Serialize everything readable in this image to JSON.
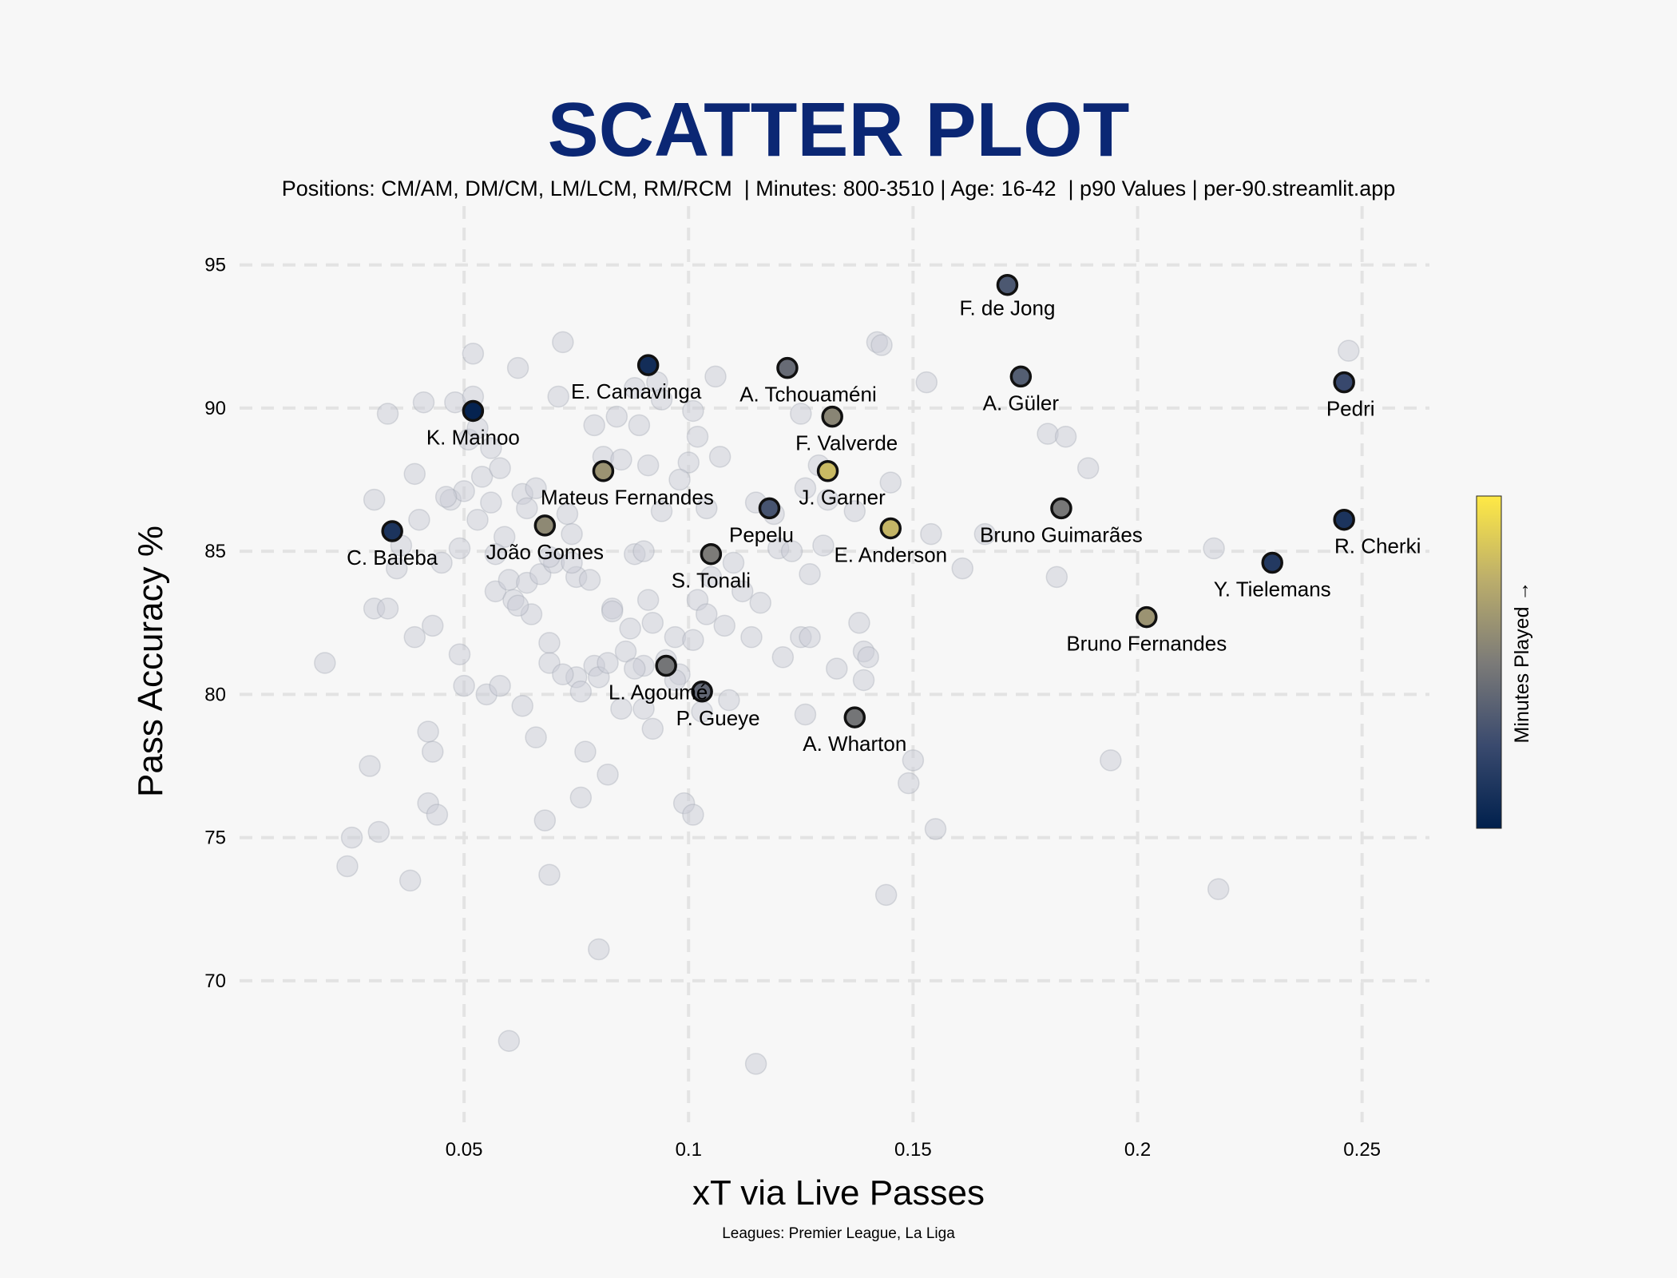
{
  "title": "SCATTER PLOT",
  "subtitle": "Positions: CM/AM, DM/CM, LM/LCM, RM/RCM  | Minutes: 800-3510 | Age: 16-42  | p90 Values | per-90.streamlit.app",
  "footnote": "Leagues: Premier League, La Liga",
  "colors": {
    "background": "#f7f7f7",
    "title": "#0b2774",
    "grid": "#e3e3e3",
    "background_points": "#c9ccd6",
    "cmap_low": "#00204d",
    "cmap_mid": "#7c7b78",
    "cmap_high": "#ffe945"
  },
  "chart_data": {
    "type": "scatter",
    "xlabel": "xT via Live Passes",
    "ylabel": "Pass Accuracy %",
    "xlim": [
      0.0,
      0.265
    ],
    "ylim": [
      65.2,
      96.3
    ],
    "xticks": [
      0.05,
      0.1,
      0.15,
      0.2,
      0.25
    ],
    "xtick_labels": [
      "0.05",
      "0.1",
      "0.15",
      "0.2",
      "0.25"
    ],
    "yticks": [
      70,
      75,
      80,
      85,
      90,
      95
    ],
    "ytick_labels": [
      "70",
      "75",
      "80",
      "85",
      "90",
      "95"
    ],
    "grid": true,
    "colorbar": {
      "label": "Minutes Played →",
      "placement": "right",
      "colormap": "cividis"
    },
    "highlighted": [
      {
        "name": "F. de Jong",
        "x": 0.171,
        "y": 94.3,
        "color": 0.32
      },
      {
        "name": "E. Camavinga",
        "x": 0.091,
        "y": 91.5,
        "color": 0.08
      },
      {
        "name": "A. Tchouaméni",
        "x": 0.122,
        "y": 91.4,
        "color": 0.42
      },
      {
        "name": "A. Güler",
        "x": 0.174,
        "y": 91.1,
        "color": 0.35
      },
      {
        "name": "Pedri",
        "x": 0.246,
        "y": 90.9,
        "color": 0.24
      },
      {
        "name": "K. Mainoo",
        "x": 0.052,
        "y": 89.9,
        "color": 0.02
      },
      {
        "name": "F. Valverde",
        "x": 0.132,
        "y": 89.7,
        "color": 0.55
      },
      {
        "name": "Mateus Fernandes",
        "x": 0.081,
        "y": 87.8,
        "color": 0.62
      },
      {
        "name": "J. Garner",
        "x": 0.131,
        "y": 87.8,
        "color": 0.8
      },
      {
        "name": "Pepelu",
        "x": 0.118,
        "y": 86.5,
        "color": 0.3
      },
      {
        "name": "Bruno Guimarães",
        "x": 0.183,
        "y": 86.5,
        "color": 0.48
      },
      {
        "name": "R. Cherki",
        "x": 0.246,
        "y": 86.1,
        "color": 0.12
      },
      {
        "name": "João Gomes",
        "x": 0.068,
        "y": 85.9,
        "color": 0.57
      },
      {
        "name": "E. Anderson",
        "x": 0.145,
        "y": 85.8,
        "color": 0.78
      },
      {
        "name": "C. Baleba",
        "x": 0.034,
        "y": 85.7,
        "color": 0.12
      },
      {
        "name": "S. Tonali",
        "x": 0.105,
        "y": 84.9,
        "color": 0.5
      },
      {
        "name": "Y. Tielemans",
        "x": 0.23,
        "y": 84.6,
        "color": 0.15
      },
      {
        "name": "Bruno Fernandes",
        "x": 0.202,
        "y": 82.7,
        "color": 0.62
      },
      {
        "name": "L. Agoumé",
        "x": 0.095,
        "y": 81.0,
        "color": 0.47
      },
      {
        "name": "P. Gueye",
        "x": 0.103,
        "y": 80.1,
        "color": 0.4
      },
      {
        "name": "A. Wharton",
        "x": 0.137,
        "y": 79.2,
        "color": 0.47
      }
    ],
    "background_points": [
      [
        0.019,
        81.1
      ],
      [
        0.024,
        74.0
      ],
      [
        0.025,
        75.0
      ],
      [
        0.029,
        77.5
      ],
      [
        0.031,
        75.2
      ],
      [
        0.03,
        83.0
      ],
      [
        0.03,
        86.8
      ],
      [
        0.033,
        89.8
      ],
      [
        0.033,
        83.0
      ],
      [
        0.035,
        84.4
      ],
      [
        0.036,
        85.2
      ],
      [
        0.038,
        73.5
      ],
      [
        0.039,
        82.0
      ],
      [
        0.039,
        87.7
      ],
      [
        0.04,
        86.1
      ],
      [
        0.041,
        90.2
      ],
      [
        0.042,
        78.7
      ],
      [
        0.042,
        76.2
      ],
      [
        0.043,
        82.4
      ],
      [
        0.043,
        78.0
      ],
      [
        0.044,
        75.8
      ],
      [
        0.045,
        84.6
      ],
      [
        0.047,
        86.8
      ],
      [
        0.048,
        90.2
      ],
      [
        0.049,
        85.1
      ],
      [
        0.049,
        81.4
      ],
      [
        0.05,
        80.3
      ],
      [
        0.05,
        87.1
      ],
      [
        0.051,
        88.9
      ],
      [
        0.052,
        91.9
      ],
      [
        0.052,
        90.4
      ],
      [
        0.053,
        86.1
      ],
      [
        0.054,
        87.6
      ],
      [
        0.055,
        80.0
      ],
      [
        0.056,
        86.7
      ],
      [
        0.056,
        88.6
      ],
      [
        0.057,
        83.6
      ],
      [
        0.058,
        80.3
      ],
      [
        0.058,
        87.9
      ],
      [
        0.059,
        85.5
      ],
      [
        0.06,
        84.0
      ],
      [
        0.061,
        83.3
      ],
      [
        0.062,
        91.4
      ],
      [
        0.063,
        87.0
      ],
      [
        0.063,
        79.6
      ],
      [
        0.064,
        83.9
      ],
      [
        0.065,
        82.8
      ],
      [
        0.066,
        78.5
      ],
      [
        0.067,
        84.2
      ],
      [
        0.068,
        75.6
      ],
      [
        0.069,
        73.7
      ],
      [
        0.069,
        81.8
      ],
      [
        0.069,
        81.1
      ],
      [
        0.07,
        84.6
      ],
      [
        0.071,
        90.4
      ],
      [
        0.072,
        92.3
      ],
      [
        0.073,
        86.3
      ],
      [
        0.074,
        85.6
      ],
      [
        0.075,
        84.1
      ],
      [
        0.075,
        80.6
      ],
      [
        0.076,
        80.1
      ],
      [
        0.076,
        76.4
      ],
      [
        0.077,
        78.0
      ],
      [
        0.078,
        84.0
      ],
      [
        0.079,
        81.0
      ],
      [
        0.079,
        89.4
      ],
      [
        0.08,
        80.6
      ],
      [
        0.081,
        88.3
      ],
      [
        0.082,
        77.2
      ],
      [
        0.082,
        81.1
      ],
      [
        0.083,
        83.0
      ],
      [
        0.084,
        89.7
      ],
      [
        0.085,
        88.2
      ],
      [
        0.085,
        79.5
      ],
      [
        0.086,
        81.5
      ],
      [
        0.087,
        82.3
      ],
      [
        0.088,
        90.7
      ],
      [
        0.088,
        84.9
      ],
      [
        0.089,
        89.4
      ],
      [
        0.09,
        81.0
      ],
      [
        0.09,
        79.5
      ],
      [
        0.091,
        83.3
      ],
      [
        0.091,
        88.0
      ],
      [
        0.092,
        78.8
      ],
      [
        0.092,
        82.5
      ],
      [
        0.093,
        90.9
      ],
      [
        0.094,
        86.4
      ],
      [
        0.094,
        90.3
      ],
      [
        0.095,
        81.2
      ],
      [
        0.097,
        82.0
      ],
      [
        0.098,
        80.7
      ],
      [
        0.099,
        76.2
      ],
      [
        0.1,
        88.1
      ],
      [
        0.101,
        75.8
      ],
      [
        0.101,
        81.9
      ],
      [
        0.101,
        89.9
      ],
      [
        0.102,
        89.0
      ],
      [
        0.102,
        83.3
      ],
      [
        0.103,
        79.4
      ],
      [
        0.104,
        86.5
      ],
      [
        0.104,
        82.8
      ],
      [
        0.105,
        84.1
      ],
      [
        0.106,
        91.1
      ],
      [
        0.107,
        88.3
      ],
      [
        0.108,
        82.4
      ],
      [
        0.109,
        79.8
      ],
      [
        0.112,
        83.6
      ],
      [
        0.114,
        82.0
      ],
      [
        0.115,
        67.1
      ],
      [
        0.115,
        86.7
      ],
      [
        0.116,
        83.2
      ],
      [
        0.119,
        86.3
      ],
      [
        0.12,
        85.1
      ],
      [
        0.121,
        81.3
      ],
      [
        0.123,
        85.0
      ],
      [
        0.125,
        89.8
      ],
      [
        0.125,
        82.0
      ],
      [
        0.126,
        87.2
      ],
      [
        0.126,
        79.3
      ],
      [
        0.127,
        84.2
      ],
      [
        0.129,
        88.0
      ],
      [
        0.13,
        85.2
      ],
      [
        0.131,
        86.8
      ],
      [
        0.133,
        80.9
      ],
      [
        0.137,
        86.4
      ],
      [
        0.138,
        82.5
      ],
      [
        0.139,
        81.5
      ],
      [
        0.139,
        80.5
      ],
      [
        0.14,
        81.3
      ],
      [
        0.142,
        92.3
      ],
      [
        0.143,
        92.2
      ],
      [
        0.144,
        73.0
      ],
      [
        0.145,
        87.4
      ],
      [
        0.149,
        76.9
      ],
      [
        0.15,
        77.7
      ],
      [
        0.153,
        90.9
      ],
      [
        0.154,
        85.6
      ],
      [
        0.155,
        75.3
      ],
      [
        0.161,
        84.4
      ],
      [
        0.166,
        85.6
      ],
      [
        0.18,
        89.1
      ],
      [
        0.182,
        84.1
      ],
      [
        0.184,
        89.0
      ],
      [
        0.189,
        87.9
      ],
      [
        0.194,
        77.7
      ],
      [
        0.217,
        85.1
      ],
      [
        0.218,
        73.2
      ],
      [
        0.247,
        92.0
      ],
      [
        0.06,
        67.9
      ],
      [
        0.08,
        71.1
      ],
      [
        0.062,
        83.1
      ],
      [
        0.046,
        86.9
      ],
      [
        0.053,
        89.3
      ],
      [
        0.066,
        87.2
      ],
      [
        0.074,
        84.6
      ],
      [
        0.083,
        82.9
      ],
      [
        0.088,
        80.9
      ],
      [
        0.097,
        80.5
      ],
      [
        0.11,
        84.6
      ],
      [
        0.127,
        82.0
      ],
      [
        0.098,
        87.5
      ],
      [
        0.072,
        80.7
      ],
      [
        0.064,
        86.5
      ],
      [
        0.09,
        85.0
      ],
      [
        0.057,
        84.9
      ],
      [
        0.069,
        84.8
      ]
    ]
  }
}
